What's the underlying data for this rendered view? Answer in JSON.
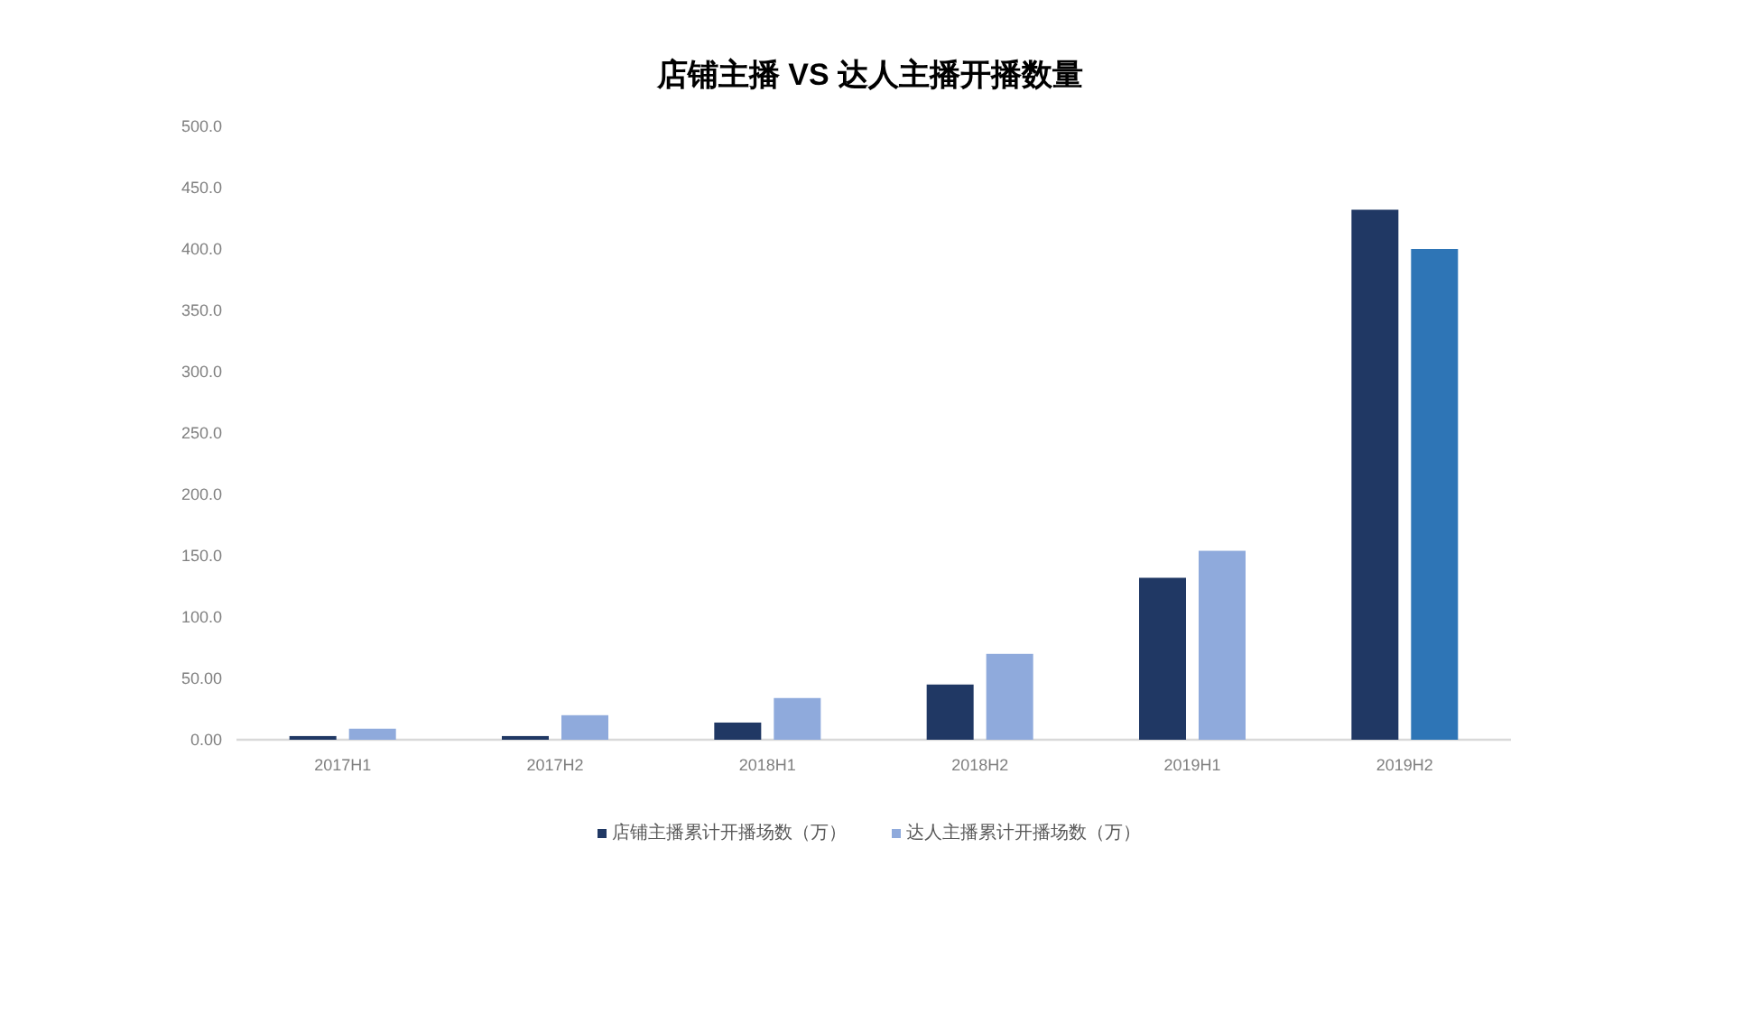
{
  "chart_data": {
    "type": "bar",
    "title": "店铺主播 VS 达人主播开播数量",
    "categories": [
      "2017H1",
      "2017H2",
      "2018H1",
      "2018H2",
      "2019H1",
      "2019H2"
    ],
    "series": [
      {
        "name": "店铺主播累计开播场数（万）",
        "color": "#203864",
        "values": [
          3,
          3,
          14,
          45,
          132,
          432
        ]
      },
      {
        "name": "达人主播累计开播场数（万）",
        "color": "#8faadc",
        "colors": [
          "#8faadc",
          "#8faadc",
          "#8faadc",
          "#8faadc",
          "#8faadc",
          "#2e75b6"
        ],
        "values": [
          9,
          20,
          34,
          70,
          154,
          400
        ]
      }
    ],
    "ylim": [
      0,
      500
    ],
    "yticks": [
      {
        "value": 0,
        "label": "0.00"
      },
      {
        "value": 50,
        "label": "50.00"
      },
      {
        "value": 100,
        "label": "100.0"
      },
      {
        "value": 150,
        "label": "150.0"
      },
      {
        "value": 200,
        "label": "200.0"
      },
      {
        "value": 250,
        "label": "250.0"
      },
      {
        "value": 300,
        "label": "300.0"
      },
      {
        "value": 350,
        "label": "350.0"
      },
      {
        "value": 400,
        "label": "400.0"
      },
      {
        "value": 450,
        "label": "450.0"
      },
      {
        "value": 500,
        "label": "500.0"
      }
    ],
    "legend": "bottom"
  }
}
